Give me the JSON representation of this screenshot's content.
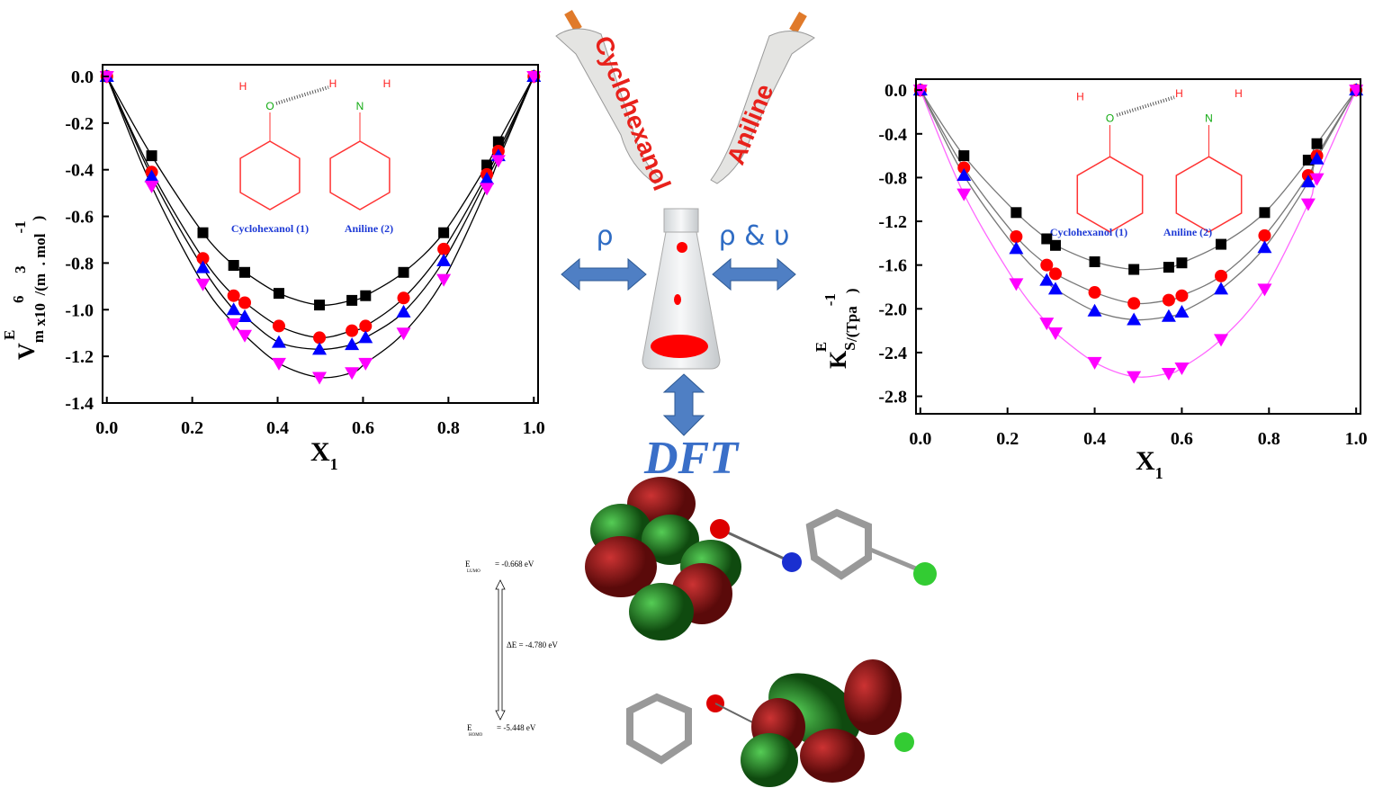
{
  "chart_data": [
    {
      "type": "scatter",
      "xlabel": [
        "X",
        "1"
      ],
      "ylabel": [
        "V",
        "m",
        "E",
        " x10",
        "6",
        "/(m",
        "3",
        ". mol",
        "-1",
        ")"
      ],
      "annotations": [
        "H",
        "O",
        "H",
        "N",
        "H",
        "Cyclohexanol (1)",
        "Aniline (2)"
      ],
      "xlim": [
        -0.01,
        1.01
      ],
      "ylim": [
        -1.4,
        0.05
      ],
      "xticks": [
        {
          "value": 0,
          "label": "0.0"
        },
        0.2,
        0.4,
        0.6,
        0.8,
        {
          "value": 1,
          "label": "1.0"
        }
      ],
      "yticks": [
        {
          "value": 0,
          "label": "0.0"
        },
        -0.2,
        -0.4,
        -0.6,
        -0.8,
        {
          "value": -1,
          "label": "-1.0"
        },
        -1.2,
        -1.4
      ],
      "line_color": "#000000",
      "x": [
        0,
        0.105,
        0.225,
        0.297,
        0.323,
        0.403,
        0.498,
        0.574,
        0.606,
        0.695,
        0.789,
        0.89,
        0.917,
        1
      ],
      "series": [
        {
          "color": "#000000",
          "marker": "square",
          "values": [
            0,
            -0.34,
            -0.67,
            -0.81,
            -0.84,
            -0.93,
            -0.98,
            -0.96,
            -0.94,
            -0.84,
            -0.67,
            -0.38,
            -0.28,
            0
          ]
        },
        {
          "color": "#ff0000",
          "marker": "circle",
          "values": [
            0,
            -0.41,
            -0.78,
            -0.94,
            -0.97,
            -1.07,
            -1.12,
            -1.09,
            -1.07,
            -0.95,
            -0.74,
            -0.42,
            -0.32,
            0
          ]
        },
        {
          "color": "#0000ff",
          "marker": "triangle-up",
          "values": [
            0,
            -0.43,
            -0.82,
            -1.0,
            -1.03,
            -1.14,
            -1.17,
            -1.15,
            -1.12,
            -1.01,
            -0.79,
            -0.44,
            -0.34,
            0
          ]
        },
        {
          "color": "#ff00ff",
          "marker": "triangle-down",
          "values": [
            0,
            -0.47,
            -0.89,
            -1.06,
            -1.11,
            -1.23,
            -1.29,
            -1.27,
            -1.23,
            -1.1,
            -0.87,
            -0.48,
            -0.36,
            0
          ]
        }
      ]
    },
    {
      "type": "scatter",
      "xlabel": [
        "X",
        "1"
      ],
      "ylabel": [
        "K",
        "S",
        "E",
        "/(Tpa",
        "-1",
        ")"
      ],
      "annotations": [
        "H",
        "O",
        "H",
        "N",
        "H",
        "Cyclohexanol (1)",
        "Aniline (2)"
      ],
      "xlim": [
        -0.01,
        1.01
      ],
      "ylim": [
        -2.96,
        0.1
      ],
      "xticks": [
        {
          "value": 0,
          "label": "0.0"
        },
        0.2,
        0.4,
        0.6,
        0.8,
        {
          "value": 1,
          "label": "1.0"
        }
      ],
      "yticks": [
        {
          "value": 0,
          "label": "0.0"
        },
        -0.4,
        -0.8,
        -1.2,
        -1.6,
        {
          "value": -2,
          "label": "-2.0"
        },
        -2.4,
        -2.8
      ],
      "line_color": "#777777",
      "x": [
        0,
        0.1,
        0.22,
        0.29,
        0.31,
        0.4,
        0.49,
        0.57,
        0.6,
        0.69,
        0.79,
        0.89,
        0.91,
        1
      ],
      "series": [
        {
          "color": "#000000",
          "marker": "square",
          "values": [
            0,
            -0.6,
            -1.12,
            -1.36,
            -1.42,
            -1.57,
            -1.64,
            -1.62,
            -1.58,
            -1.41,
            -1.12,
            -0.64,
            -0.49,
            0
          ]
        },
        {
          "color": "#ff0000",
          "marker": "circle",
          "values": [
            0,
            -0.71,
            -1.34,
            -1.6,
            -1.68,
            -1.85,
            -1.95,
            -1.92,
            -1.88,
            -1.7,
            -1.33,
            -0.78,
            -0.6,
            0
          ]
        },
        {
          "color": "#0000ff",
          "marker": "triangle-up",
          "values": [
            0,
            -0.78,
            -1.45,
            -1.74,
            -1.82,
            -2.02,
            -2.1,
            -2.07,
            -2.03,
            -1.82,
            -1.44,
            -0.84,
            -0.63,
            0
          ]
        },
        {
          "color": "#ff00ff",
          "marker": "triangle-down",
          "values": [
            0,
            -0.95,
            -1.77,
            -2.13,
            -2.22,
            -2.49,
            -2.62,
            -2.59,
            -2.54,
            -2.28,
            -1.82,
            -1.04,
            -0.81,
            0
          ]
        }
      ]
    }
  ],
  "diagram": {
    "pipette_left": "Cyclohexanol",
    "pipette_right": "Aniline",
    "arrow_left": "ρ",
    "arrow_right": "ρ & υ",
    "method": "DFT",
    "lumo": [
      "E",
      "LUMO",
      "= -0.668 eV"
    ],
    "gap": "ΔE = -4.780 eV",
    "homo": [
      "E",
      "HOMO",
      "= -5.448 eV"
    ]
  }
}
